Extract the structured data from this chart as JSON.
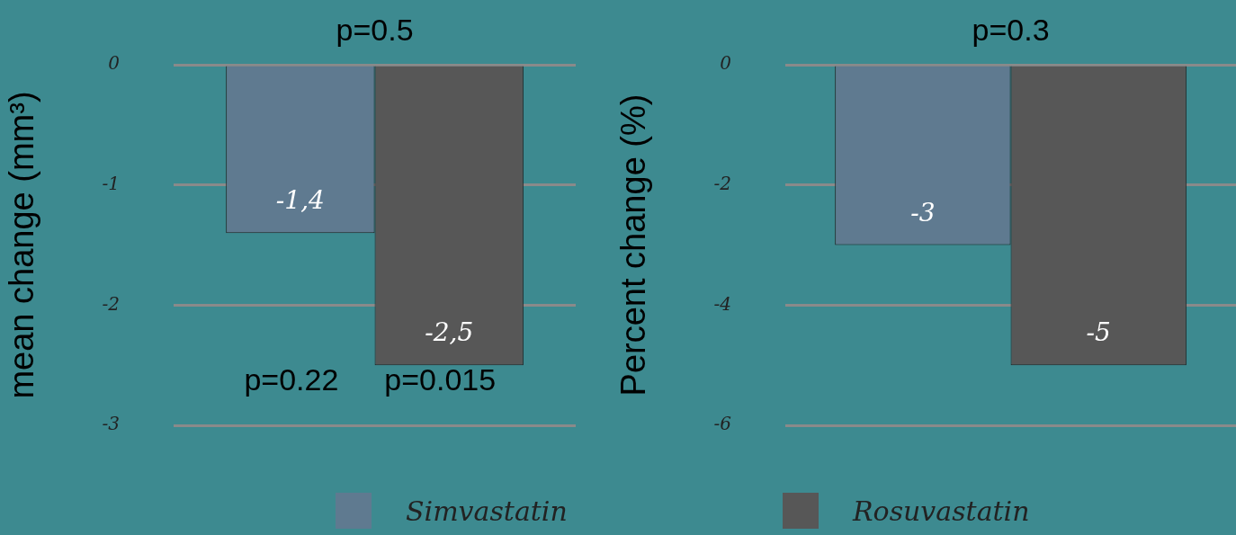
{
  "chart_data": [
    {
      "type": "bar",
      "ylabel": "mean change (mm³)",
      "categories": [
        null
      ],
      "series": [
        {
          "name": "Simvastatin",
          "color": "#5f7a90",
          "values": [
            -1.4
          ],
          "value_labels": [
            "-1,4"
          ]
        },
        {
          "name": "Rosuvastatin",
          "color": "#575757",
          "values": [
            -2.5
          ],
          "value_labels": [
            "-2,5"
          ]
        }
      ],
      "ylim": [
        -3,
        0
      ],
      "yticks": [
        0,
        -1,
        -2,
        -3
      ],
      "grid": "y",
      "legend": "bottom",
      "annotations": [
        "p=0.5",
        "p=0.22",
        "p=0.015"
      ]
    },
    {
      "type": "bar",
      "ylabel": "Percent change (%)",
      "categories": [
        null
      ],
      "series": [
        {
          "color": "#5f7a90",
          "values": [
            -3
          ],
          "value_labels": [
            "-3"
          ]
        },
        {
          "color": "#575757",
          "values": [
            -5
          ],
          "value_labels": [
            "-5"
          ]
        }
      ],
      "ylim": [
        -6,
        0
      ],
      "yticks": [
        0,
        -2,
        -4,
        -6
      ],
      "grid": "y",
      "annotations": [
        "p=0.3"
      ]
    }
  ]
}
